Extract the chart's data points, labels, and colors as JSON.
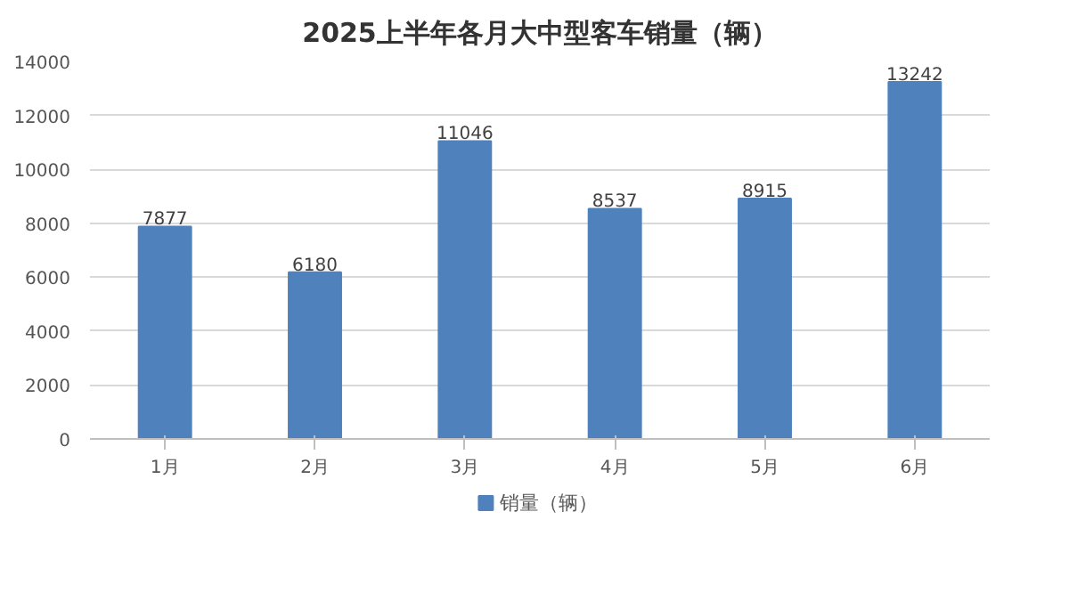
{
  "chart_data": {
    "type": "bar",
    "title": "2025上半年各月大中型客车销量（辆）",
    "categories": [
      "1月",
      "2月",
      "3月",
      "4月",
      "5月",
      "6月"
    ],
    "series": [
      {
        "name": "销量（辆）",
        "color": "#4f81bd",
        "values": [
          7877,
          6180,
          11046,
          8537,
          8915,
          13242
        ]
      }
    ],
    "ylim": [
      0,
      14000
    ],
    "yticks": [
      0,
      2000,
      4000,
      6000,
      8000,
      10000,
      12000,
      14000
    ],
    "grid": "y",
    "legend": "bottom",
    "data_labels": true
  }
}
